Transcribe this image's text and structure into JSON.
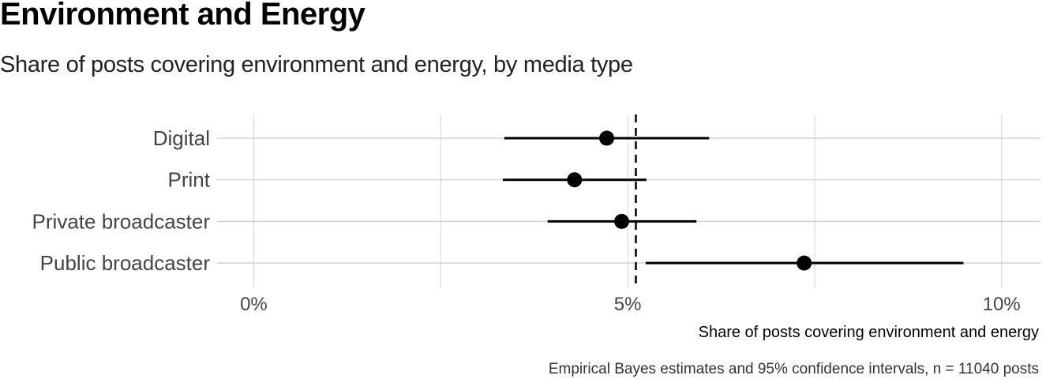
{
  "chart_data": {
    "type": "dot-interval",
    "title": "Environment and Energy",
    "subtitle": "Share of posts covering environment and energy, by media type",
    "xlabel": "Share of posts covering environment and energy",
    "caption": "Empirical Bayes estimates and 95% confidence intervals, n = 11040 posts",
    "categories": [
      "Digital",
      "Print",
      "Private broadcaster",
      "Public broadcaster"
    ],
    "estimates": [
      4.72,
      4.29,
      4.92,
      7.36
    ],
    "lower": [
      3.35,
      3.33,
      3.93,
      5.24
    ],
    "upper": [
      6.09,
      5.25,
      5.92,
      9.49
    ],
    "reference_line": 5.11,
    "reference_line_style": "dashed",
    "x_ticks": [
      0,
      5,
      10
    ],
    "x_tick_labels": [
      "0%",
      "5%",
      "10%"
    ],
    "xlim": [
      -0.49,
      10.52
    ],
    "grid": true,
    "colors": {
      "points": "#000000",
      "grid": "#d9d9d9"
    }
  }
}
